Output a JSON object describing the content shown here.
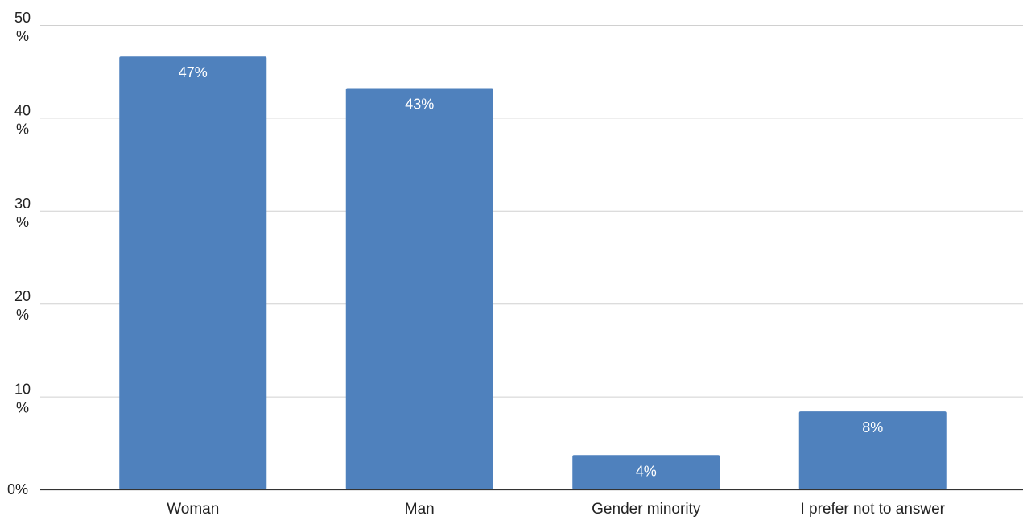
{
  "chart_data": {
    "type": "bar",
    "categories": [
      "Woman",
      "Man",
      "Gender minority",
      "I prefer not to answer"
    ],
    "values": [
      46.6,
      43.2,
      3.7,
      8.4
    ],
    "data_labels": [
      "47%",
      "43%",
      "4%",
      "8%"
    ],
    "ylim": [
      0,
      50
    ],
    "y_ticks": [
      {
        "value": 0,
        "lines": [
          "0%"
        ]
      },
      {
        "value": 10,
        "lines": [
          "10",
          "%"
        ]
      },
      {
        "value": 20,
        "lines": [
          "20",
          "%"
        ]
      },
      {
        "value": 30,
        "lines": [
          "30",
          "%"
        ]
      },
      {
        "value": 40,
        "lines": [
          "40",
          "%"
        ]
      },
      {
        "value": 50,
        "lines": [
          "50",
          "%"
        ]
      }
    ],
    "grid": true,
    "legend": "none",
    "title": "",
    "xlabel": "",
    "ylabel": ""
  },
  "colors": {
    "bar": "#4f81bd",
    "grid": "#d0d0d0",
    "axis": "#333333"
  }
}
